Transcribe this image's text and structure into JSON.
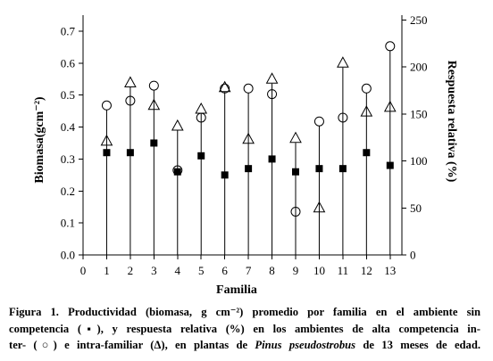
{
  "figure": {
    "caption": {
      "line1": "Figura 1. Productividad (biomasa, g cm⁻²) promedio por familia en el ambiente sin",
      "line2": "competencia (▪), y respuesta relativa (%) en los ambientes de alta competencia in-",
      "line3_start": "ter- (○) e intra-familiar (Δ), en plantas de ",
      "line3_species": "Pinus pseudostrobus",
      "line3_end": " de 13 meses de edad."
    }
  },
  "chart_data": {
    "type": "scatter",
    "xlabel": "Familia",
    "ylabel": "Biomasa(gcm⁻²)",
    "y2label": "Respuesta relativa (%)",
    "xticks": [
      "0",
      "1",
      "2",
      "3",
      "4",
      "5",
      "6",
      "7",
      "8",
      "9",
      "10",
      "11",
      "12",
      "13"
    ],
    "yticks": [
      "0.0",
      "0.1",
      "0.2",
      "0.3",
      "0.4",
      "0.5",
      "0.6",
      "0.7"
    ],
    "y2ticks": [
      "0",
      "50",
      "100",
      "150",
      "200",
      "250"
    ],
    "xlim": [
      0,
      13.5
    ],
    "ylim": [
      0,
      0.75
    ],
    "y2lim": [
      0,
      255
    ],
    "grid": false,
    "drop_lines": true,
    "x": [
      1,
      2,
      3,
      4,
      5,
      6,
      7,
      8,
      9,
      10,
      11,
      12,
      13
    ],
    "series": [
      {
        "marker": "filled-square",
        "axis": "left",
        "values": [
          0.32,
          0.32,
          0.35,
          0.26,
          0.31,
          0.25,
          0.27,
          0.3,
          0.26,
          0.27,
          0.27,
          0.32,
          0.28
        ]
      },
      {
        "marker": "open-circle",
        "axis": "right",
        "values": [
          159,
          164,
          180,
          90,
          146,
          177,
          177,
          171,
          46,
          142,
          146,
          177,
          222
        ]
      },
      {
        "marker": "open-triangle",
        "axis": "right",
        "values": [
          121,
          183,
          159,
          137,
          155,
          178,
          123,
          187,
          124,
          50,
          204,
          152,
          157
        ]
      }
    ]
  }
}
